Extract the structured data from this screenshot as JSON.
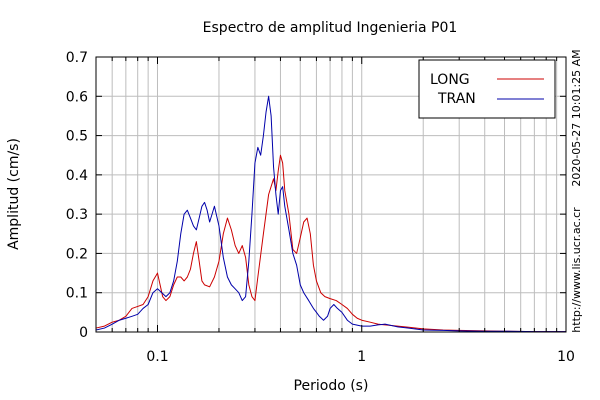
{
  "chart_data": {
    "type": "line",
    "title": "Espectro de amplitud Ingenieria P01",
    "xlabel": "Periodo (s)",
    "ylabel": "Amplitud (cm/s)",
    "xscale": "log",
    "xlim": [
      0.05,
      10
    ],
    "ylim": [
      0,
      0.7
    ],
    "x_ticks": [
      {
        "value": 0.1,
        "label": "0.1"
      },
      {
        "value": 1,
        "label": "1"
      },
      {
        "value": 10,
        "label": "10"
      }
    ],
    "y_ticks": [
      {
        "value": 0,
        "label": "0"
      },
      {
        "value": 0.1,
        "label": "0.1"
      },
      {
        "value": 0.2,
        "label": "0.2"
      },
      {
        "value": 0.3,
        "label": "0.3"
      },
      {
        "value": 0.4,
        "label": "0.4"
      },
      {
        "value": 0.5,
        "label": "0.5"
      },
      {
        "value": 0.6,
        "label": "0.6"
      },
      {
        "value": 0.7,
        "label": "0.7"
      }
    ],
    "grid": true,
    "legend_position": "top-right",
    "side_texts": [
      "2020-05-27 10:01:25 AM",
      "http://www.lis.ucr.ac.cr"
    ],
    "series": [
      {
        "name": "LONG",
        "color": "#cc0000",
        "points": [
          [
            0.05,
            0.01
          ],
          [
            0.055,
            0.015
          ],
          [
            0.06,
            0.025
          ],
          [
            0.065,
            0.03
          ],
          [
            0.07,
            0.04
          ],
          [
            0.075,
            0.06
          ],
          [
            0.08,
            0.065
          ],
          [
            0.085,
            0.07
          ],
          [
            0.09,
            0.09
          ],
          [
            0.095,
            0.13
          ],
          [
            0.1,
            0.15
          ],
          [
            0.103,
            0.12
          ],
          [
            0.106,
            0.09
          ],
          [
            0.11,
            0.08
          ],
          [
            0.115,
            0.09
          ],
          [
            0.12,
            0.12
          ],
          [
            0.125,
            0.14
          ],
          [
            0.13,
            0.14
          ],
          [
            0.135,
            0.13
          ],
          [
            0.14,
            0.14
          ],
          [
            0.145,
            0.16
          ],
          [
            0.15,
            0.2
          ],
          [
            0.155,
            0.23
          ],
          [
            0.16,
            0.18
          ],
          [
            0.165,
            0.13
          ],
          [
            0.17,
            0.12
          ],
          [
            0.18,
            0.115
          ],
          [
            0.19,
            0.14
          ],
          [
            0.2,
            0.18
          ],
          [
            0.21,
            0.25
          ],
          [
            0.22,
            0.29
          ],
          [
            0.23,
            0.26
          ],
          [
            0.24,
            0.22
          ],
          [
            0.25,
            0.2
          ],
          [
            0.26,
            0.22
          ],
          [
            0.27,
            0.19
          ],
          [
            0.28,
            0.12
          ],
          [
            0.29,
            0.09
          ],
          [
            0.3,
            0.08
          ],
          [
            0.31,
            0.14
          ],
          [
            0.33,
            0.25
          ],
          [
            0.35,
            0.35
          ],
          [
            0.37,
            0.39
          ],
          [
            0.38,
            0.36
          ],
          [
            0.39,
            0.41
          ],
          [
            0.4,
            0.45
          ],
          [
            0.41,
            0.43
          ],
          [
            0.42,
            0.36
          ],
          [
            0.44,
            0.3
          ],
          [
            0.46,
            0.21
          ],
          [
            0.48,
            0.2
          ],
          [
            0.5,
            0.24
          ],
          [
            0.52,
            0.28
          ],
          [
            0.54,
            0.29
          ],
          [
            0.56,
            0.25
          ],
          [
            0.58,
            0.17
          ],
          [
            0.6,
            0.13
          ],
          [
            0.63,
            0.1
          ],
          [
            0.66,
            0.09
          ],
          [
            0.7,
            0.085
          ],
          [
            0.75,
            0.08
          ],
          [
            0.8,
            0.07
          ],
          [
            0.85,
            0.06
          ],
          [
            0.9,
            0.045
          ],
          [
            0.95,
            0.035
          ],
          [
            1.0,
            0.03
          ],
          [
            1.1,
            0.025
          ],
          [
            1.2,
            0.02
          ],
          [
            1.3,
            0.018
          ],
          [
            1.5,
            0.015
          ],
          [
            1.7,
            0.012
          ],
          [
            2.0,
            0.008
          ],
          [
            2.5,
            0.005
          ],
          [
            3.0,
            0.004
          ],
          [
            4.0,
            0.003
          ],
          [
            5.0,
            0.002
          ],
          [
            7.0,
            0.001
          ],
          [
            10.0,
            0.001
          ]
        ]
      },
      {
        "name": "TRAN",
        "color": "#0000aa",
        "points": [
          [
            0.05,
            0.005
          ],
          [
            0.055,
            0.01
          ],
          [
            0.06,
            0.02
          ],
          [
            0.065,
            0.03
          ],
          [
            0.07,
            0.035
          ],
          [
            0.075,
            0.04
          ],
          [
            0.08,
            0.045
          ],
          [
            0.085,
            0.06
          ],
          [
            0.09,
            0.07
          ],
          [
            0.095,
            0.1
          ],
          [
            0.1,
            0.11
          ],
          [
            0.105,
            0.1
          ],
          [
            0.11,
            0.09
          ],
          [
            0.115,
            0.1
          ],
          [
            0.12,
            0.13
          ],
          [
            0.125,
            0.18
          ],
          [
            0.13,
            0.25
          ],
          [
            0.135,
            0.3
          ],
          [
            0.14,
            0.31
          ],
          [
            0.145,
            0.29
          ],
          [
            0.15,
            0.27
          ],
          [
            0.155,
            0.26
          ],
          [
            0.16,
            0.29
          ],
          [
            0.165,
            0.32
          ],
          [
            0.17,
            0.33
          ],
          [
            0.175,
            0.31
          ],
          [
            0.18,
            0.28
          ],
          [
            0.185,
            0.3
          ],
          [
            0.19,
            0.32
          ],
          [
            0.2,
            0.27
          ],
          [
            0.21,
            0.19
          ],
          [
            0.22,
            0.14
          ],
          [
            0.23,
            0.12
          ],
          [
            0.24,
            0.11
          ],
          [
            0.25,
            0.1
          ],
          [
            0.26,
            0.08
          ],
          [
            0.27,
            0.09
          ],
          [
            0.28,
            0.18
          ],
          [
            0.29,
            0.3
          ],
          [
            0.3,
            0.43
          ],
          [
            0.31,
            0.47
          ],
          [
            0.32,
            0.45
          ],
          [
            0.33,
            0.5
          ],
          [
            0.34,
            0.56
          ],
          [
            0.35,
            0.6
          ],
          [
            0.36,
            0.55
          ],
          [
            0.37,
            0.42
          ],
          [
            0.38,
            0.35
          ],
          [
            0.39,
            0.3
          ],
          [
            0.4,
            0.36
          ],
          [
            0.41,
            0.37
          ],
          [
            0.42,
            0.32
          ],
          [
            0.44,
            0.26
          ],
          [
            0.46,
            0.2
          ],
          [
            0.48,
            0.17
          ],
          [
            0.5,
            0.12
          ],
          [
            0.52,
            0.1
          ],
          [
            0.55,
            0.08
          ],
          [
            0.58,
            0.06
          ],
          [
            0.6,
            0.05
          ],
          [
            0.62,
            0.04
          ],
          [
            0.65,
            0.03
          ],
          [
            0.68,
            0.04
          ],
          [
            0.7,
            0.06
          ],
          [
            0.73,
            0.07
          ],
          [
            0.76,
            0.06
          ],
          [
            0.8,
            0.05
          ],
          [
            0.85,
            0.03
          ],
          [
            0.9,
            0.02
          ],
          [
            1.0,
            0.015
          ],
          [
            1.1,
            0.015
          ],
          [
            1.2,
            0.018
          ],
          [
            1.3,
            0.02
          ],
          [
            1.5,
            0.013
          ],
          [
            1.7,
            0.01
          ],
          [
            2.0,
            0.005
          ],
          [
            2.5,
            0.004
          ],
          [
            3.0,
            0.003
          ],
          [
            4.0,
            0.002
          ],
          [
            5.0,
            0.002
          ],
          [
            7.0,
            0.001
          ],
          [
            10.0,
            0.001
          ]
        ]
      }
    ]
  }
}
